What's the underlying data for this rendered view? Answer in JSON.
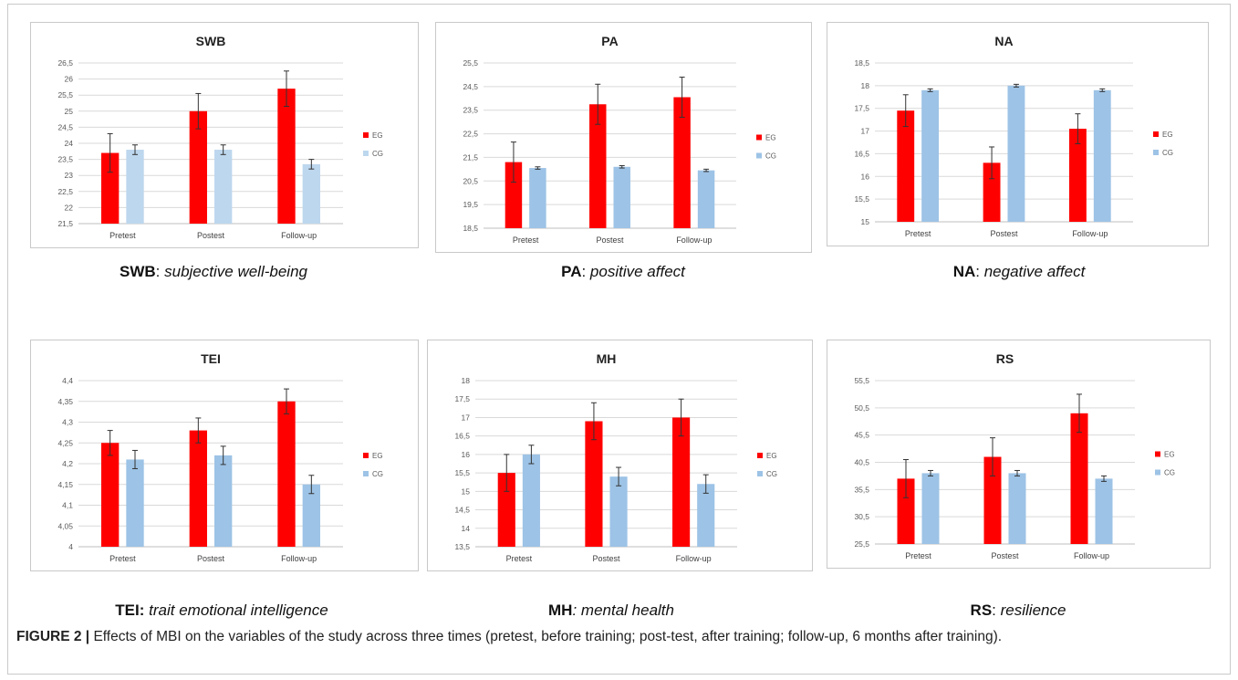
{
  "figure_caption": {
    "label": "FIGURE 2 |",
    "text": " Effects of MBI on the variables of the study across three times (pretest, before training; post-test, after training; follow-up, 6 months after training)."
  },
  "colors": {
    "eg": "#ff0000",
    "cg_light": "#bdd7ee",
    "cg": "#9dc3e6",
    "grid": "#d9d9d9",
    "error_bar": "#333333"
  },
  "panels": [
    {
      "abbr": "SWB",
      "sep": ": ",
      "desc": "subjective well-being"
    },
    {
      "abbr": "PA",
      "sep": ": ",
      "desc": "positive affect"
    },
    {
      "abbr": "NA",
      "sep": ": ",
      "desc": "negative affect"
    },
    {
      "abbr": "TEI:",
      "sep": " ",
      "desc": "trait emotional intelligence"
    },
    {
      "abbr": "MH",
      "sep": "",
      "desc": ": mental health"
    },
    {
      "abbr": "RS",
      "sep": ": ",
      "desc": "resilience"
    }
  ],
  "chart_data": [
    {
      "type": "bar",
      "title": "SWB",
      "categories": [
        "Pretest",
        "Postest",
        "Follow-up"
      ],
      "yticks": [
        "21,5",
        "22",
        "22,5",
        "23",
        "23,5",
        "24",
        "24,5",
        "25",
        "25,5",
        "26",
        "26,5"
      ],
      "ylim": [
        21.5,
        26.5
      ],
      "grid": true,
      "legend": "right",
      "series": [
        {
          "name": "EG",
          "values": [
            23.7,
            25.0,
            25.7
          ],
          "errors": [
            0.6,
            0.55,
            0.55
          ],
          "color": "#ff0000"
        },
        {
          "name": "CG",
          "values": [
            23.8,
            23.8,
            23.35
          ],
          "errors": [
            0.15,
            0.15,
            0.15
          ],
          "color": "#bdd7ee"
        }
      ]
    },
    {
      "type": "bar",
      "title": "PA",
      "categories": [
        "Pretest",
        "Postest",
        "Follow-up"
      ],
      "yticks": [
        "18,5",
        "19,5",
        "20,5",
        "21,5",
        "22,5",
        "23,5",
        "24,5",
        "25,5"
      ],
      "ylim": [
        18.5,
        25.5
      ],
      "grid": true,
      "legend": "right",
      "series": [
        {
          "name": "EG",
          "values": [
            21.3,
            23.75,
            24.05
          ],
          "errors": [
            0.85,
            0.85,
            0.85
          ],
          "color": "#ff0000"
        },
        {
          "name": "CG",
          "values": [
            21.05,
            21.1,
            20.95
          ],
          "errors": [
            0.05,
            0.05,
            0.05
          ],
          "color": "#9dc3e6"
        }
      ]
    },
    {
      "type": "bar",
      "title": "NA",
      "categories": [
        "Pretest",
        "Postest",
        "Follow-up"
      ],
      "yticks": [
        "15",
        "15,5",
        "16",
        "16,5",
        "17",
        "17,5",
        "18",
        "18,5"
      ],
      "ylim": [
        15,
        18.5
      ],
      "grid": true,
      "legend": "right",
      "series": [
        {
          "name": "EG",
          "values": [
            17.45,
            16.3,
            17.05
          ],
          "errors": [
            0.35,
            0.35,
            0.33
          ],
          "color": "#ff0000"
        },
        {
          "name": "CG",
          "values": [
            17.9,
            18.0,
            17.9
          ],
          "errors": [
            0.03,
            0.03,
            0.03
          ],
          "color": "#9dc3e6"
        }
      ]
    },
    {
      "type": "bar",
      "title": "TEI",
      "categories": [
        "Pretest",
        "Postest",
        "Follow-up"
      ],
      "yticks": [
        "4",
        "4,05",
        "4,1",
        "4,15",
        "4,2",
        "4,25",
        "4,3",
        "4,35",
        "4,4"
      ],
      "ylim": [
        4,
        4.4
      ],
      "grid": true,
      "legend": "right",
      "series": [
        {
          "name": "EG",
          "values": [
            4.25,
            4.28,
            4.35
          ],
          "errors": [
            0.03,
            0.03,
            0.03
          ],
          "color": "#ff0000"
        },
        {
          "name": "CG",
          "values": [
            4.21,
            4.22,
            4.15
          ],
          "errors": [
            0.022,
            0.022,
            0.022
          ],
          "color": "#9dc3e6"
        }
      ]
    },
    {
      "type": "bar",
      "title": "MH",
      "categories": [
        "Pretest",
        "Postest",
        "Follow-up"
      ],
      "yticks": [
        "13,5",
        "14",
        "14,5",
        "15",
        "15,5",
        "16",
        "16,5",
        "17",
        "17,5",
        "18"
      ],
      "ylim": [
        13.5,
        18
      ],
      "grid": true,
      "legend": "right",
      "series": [
        {
          "name": "EG",
          "values": [
            15.5,
            16.9,
            17.0
          ],
          "errors": [
            0.5,
            0.5,
            0.5
          ],
          "color": "#ff0000"
        },
        {
          "name": "CG",
          "values": [
            16.0,
            15.4,
            15.2
          ],
          "errors": [
            0.25,
            0.25,
            0.25
          ],
          "color": "#9dc3e6"
        }
      ]
    },
    {
      "type": "bar",
      "title": "RS",
      "categories": [
        "Pretest",
        "Postest",
        "Follow-up"
      ],
      "yticks": [
        "25,5",
        "30,5",
        "35,5",
        "40,5",
        "45,5",
        "50,5",
        "55,5"
      ],
      "ylim": [
        25.5,
        55.5
      ],
      "grid": true,
      "legend": "right",
      "series": [
        {
          "name": "EG",
          "values": [
            37.5,
            41.5,
            49.5
          ],
          "errors": [
            3.5,
            3.5,
            3.5
          ],
          "color": "#ff0000"
        },
        {
          "name": "CG",
          "values": [
            38.5,
            38.5,
            37.5
          ],
          "errors": [
            0.5,
            0.5,
            0.5
          ],
          "color": "#9dc3e6"
        }
      ]
    }
  ]
}
